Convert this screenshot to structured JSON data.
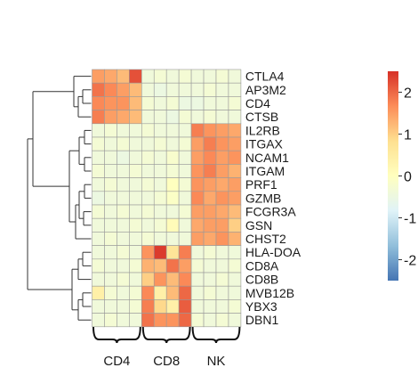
{
  "chart_data": {
    "type": "heatmap",
    "title": "",
    "rows": [
      "CTLA4",
      "AP3M2",
      "CD4",
      "CTSB",
      "IL2RB",
      "ITGAX",
      "NCAM1",
      "ITGAM",
      "PRF1",
      "GZMB",
      "FCGR3A",
      "GSN",
      "CHST2",
      "HLA-DOA",
      "CD8A",
      "CD8B",
      "MVB12B",
      "YBX3",
      "DBN1"
    ],
    "groups": [
      {
        "name": "CD4",
        "columns": 4
      },
      {
        "name": "CD8",
        "columns": 4
      },
      {
        "name": "NK",
        "columns": 4
      }
    ],
    "values": [
      [
        1.5,
        1.4,
        1.2,
        2.2,
        -0.4,
        -0.3,
        -0.4,
        -0.3,
        -0.4,
        -0.4,
        -0.3,
        -0.4
      ],
      [
        1.9,
        1.7,
        1.5,
        1.2,
        -0.4,
        -0.5,
        -0.4,
        -0.4,
        -0.4,
        -0.3,
        -0.4,
        -0.4
      ],
      [
        1.7,
        1.6,
        1.6,
        1.2,
        -0.3,
        -0.4,
        -0.3,
        -0.5,
        -0.5,
        -0.4,
        -0.4,
        -0.3
      ],
      [
        1.8,
        1.5,
        1.4,
        1.2,
        -0.4,
        -0.4,
        -0.5,
        -0.3,
        -0.4,
        -0.3,
        -0.4,
        -0.4
      ],
      [
        -0.4,
        -0.3,
        -0.4,
        -0.4,
        -0.3,
        -0.4,
        -0.4,
        -0.4,
        1.8,
        1.6,
        1.5,
        1.4
      ],
      [
        -0.3,
        -0.4,
        -0.3,
        -0.4,
        -0.4,
        -0.3,
        -0.4,
        -0.3,
        1.5,
        1.8,
        1.6,
        1.5
      ],
      [
        -0.4,
        -0.4,
        -0.5,
        -0.4,
        -0.3,
        -0.4,
        -0.2,
        -0.4,
        1.5,
        1.7,
        1.5,
        1.6
      ],
      [
        -0.3,
        -0.4,
        -0.4,
        -0.3,
        -0.4,
        -0.4,
        -0.3,
        -0.4,
        1.6,
        1.8,
        1.5,
        1.3
      ],
      [
        -0.4,
        -0.3,
        -0.4,
        -0.4,
        -0.3,
        -0.4,
        0.0,
        -0.3,
        1.6,
        1.5,
        1.4,
        1.5
      ],
      [
        -0.5,
        -0.4,
        -0.4,
        -0.4,
        -0.4,
        -0.3,
        -0.1,
        -0.4,
        1.7,
        1.4,
        1.6,
        1.5
      ],
      [
        -0.3,
        -0.4,
        -0.3,
        -0.4,
        -0.3,
        -0.4,
        -0.4,
        -0.3,
        1.5,
        1.5,
        1.4,
        1.2
      ],
      [
        -0.4,
        -0.4,
        -0.4,
        -0.3,
        -0.4,
        -0.3,
        0.1,
        -0.4,
        1.4,
        1.5,
        1.5,
        1.0
      ],
      [
        -0.4,
        -0.3,
        -0.4,
        -0.4,
        -0.3,
        -0.4,
        -0.4,
        -0.4,
        1.5,
        1.4,
        1.6,
        1.3
      ],
      [
        -0.4,
        -0.4,
        -0.3,
        -0.4,
        1.6,
        2.4,
        0.7,
        1.8,
        -0.4,
        -0.3,
        -0.4,
        -0.4
      ],
      [
        -0.3,
        -0.4,
        -0.4,
        -0.3,
        1.3,
        1.2,
        1.9,
        1.5,
        -0.3,
        -0.4,
        -0.4,
        -0.3
      ],
      [
        -0.4,
        -0.4,
        -0.3,
        -0.4,
        1.0,
        1.6,
        1.2,
        1.7,
        -0.4,
        -0.4,
        -0.3,
        -0.4
      ],
      [
        0.4,
        -0.3,
        -0.4,
        -0.3,
        1.7,
        0.4,
        1.2,
        2.0,
        -0.4,
        -0.3,
        -0.4,
        -0.4
      ],
      [
        -0.4,
        -0.4,
        -0.4,
        -0.3,
        1.8,
        0.9,
        0.4,
        2.1,
        -0.4,
        -0.4,
        -0.4,
        -0.3
      ],
      [
        -0.4,
        -0.3,
        -0.4,
        -0.4,
        1.9,
        1.6,
        1.6,
        2.0,
        -0.3,
        -0.4,
        -0.3,
        -0.4
      ]
    ],
    "color_scale": {
      "min": -2.5,
      "max": 2.5,
      "stops": [
        "#4575b4",
        "#91bfdb",
        "#e0f3f8",
        "#ffffbf",
        "#fee090",
        "#fc8d59",
        "#d73027"
      ]
    },
    "legend": {
      "position": "right",
      "ticks": [
        2,
        1,
        0,
        -1,
        -2
      ],
      "tick_labels": [
        "2",
        "1",
        "0",
        "-1",
        "-2"
      ]
    },
    "dendrogram": {
      "side": "left"
    }
  }
}
